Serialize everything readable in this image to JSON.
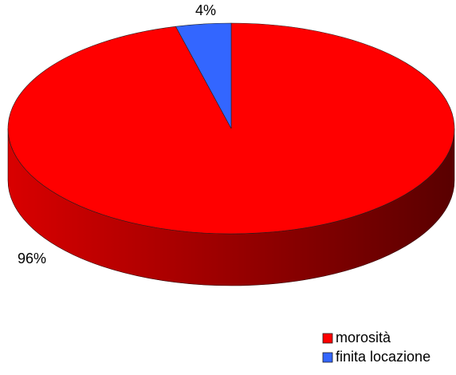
{
  "chart_data": {
    "type": "pie",
    "categories": [
      "morosità",
      "finita locazione"
    ],
    "values": [
      96,
      4
    ],
    "value_labels": [
      "96%",
      "4%"
    ],
    "colors": [
      "#ff0000",
      "#3366ff"
    ],
    "legend": "bottom-right"
  }
}
